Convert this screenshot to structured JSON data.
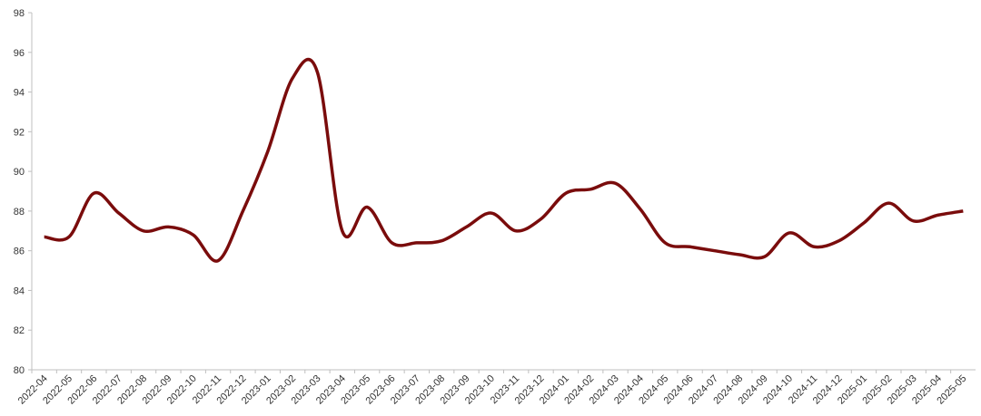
{
  "chart_data": {
    "type": "line",
    "categories": [
      "2022-04",
      "2022-05",
      "2022-06",
      "2022-07",
      "2022-08",
      "2022-09",
      "2022-10",
      "2022-11",
      "2022-12",
      "2023-01",
      "2023-02",
      "2023-03",
      "2023-04",
      "2023-05",
      "2023-06",
      "2023-07",
      "2023-08",
      "2023-09",
      "2023-10",
      "2023-11",
      "2023-12",
      "2024-01",
      "2024-02",
      "2024-03",
      "2024-04",
      "2024-05",
      "2024-06",
      "2024-07",
      "2024-08",
      "2024-09",
      "2024-10",
      "2024-11",
      "2024-12",
      "2025-01",
      "2025-02",
      "2025-03",
      "2025-04",
      "2025-05"
    ],
    "series": [
      {
        "color": "#7a0c0c",
        "values": [
          86.7,
          86.7,
          88.9,
          87.9,
          87.0,
          87.2,
          86.8,
          85.5,
          88.0,
          91.0,
          94.7,
          95.0,
          87.0,
          88.2,
          86.4,
          86.4,
          86.5,
          87.2,
          87.9,
          87.0,
          87.6,
          88.9,
          89.1,
          89.4,
          88.1,
          86.4,
          86.2,
          86.0,
          85.8,
          85.7,
          86.9,
          86.2,
          86.5,
          87.4,
          88.4,
          87.5,
          87.8,
          88.0
        ]
      }
    ],
    "ylim": [
      80,
      98
    ],
    "yticks": [
      80,
      82,
      84,
      86,
      88,
      90,
      92,
      94,
      96,
      98
    ],
    "grid": false
  }
}
